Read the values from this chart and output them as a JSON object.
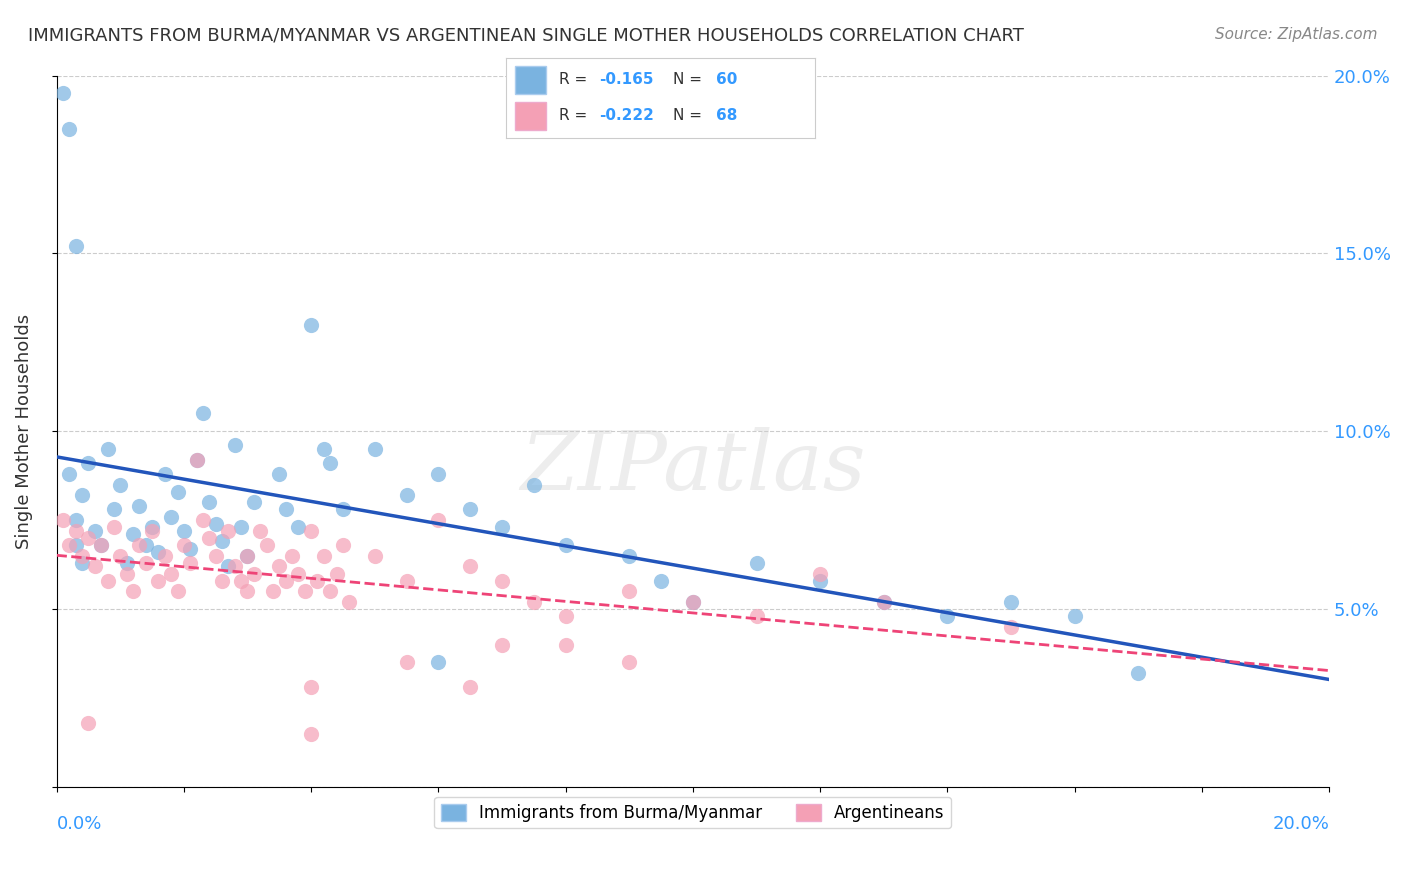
{
  "title": "IMMIGRANTS FROM BURMA/MYANMAR VS ARGENTINEAN SINGLE MOTHER HOUSEHOLDS CORRELATION CHART",
  "source": "Source: ZipAtlas.com",
  "ylabel": "Single Mother Households",
  "legend1_r": "-0.165",
  "legend1_n": "60",
  "legend2_r": "-0.222",
  "legend2_n": "68",
  "xlim": [
    0.0,
    0.2
  ],
  "ylim": [
    0.0,
    0.2
  ],
  "blue_color": "#7ab3e0",
  "pink_color": "#f4a0b5",
  "blue_line_color": "#2255bb",
  "pink_line_color": "#ee4477",
  "watermark": "ZIPatlas",
  "watermark_color": "#cccccc",
  "blue_scatter": [
    [
      0.002,
      0.088
    ],
    [
      0.003,
      0.075
    ],
    [
      0.004,
      0.082
    ],
    [
      0.005,
      0.091
    ],
    [
      0.006,
      0.072
    ],
    [
      0.007,
      0.068
    ],
    [
      0.008,
      0.095
    ],
    [
      0.009,
      0.078
    ],
    [
      0.01,
      0.085
    ],
    [
      0.011,
      0.063
    ],
    [
      0.012,
      0.071
    ],
    [
      0.013,
      0.079
    ],
    [
      0.014,
      0.068
    ],
    [
      0.015,
      0.073
    ],
    [
      0.016,
      0.066
    ],
    [
      0.017,
      0.088
    ],
    [
      0.018,
      0.076
    ],
    [
      0.019,
      0.083
    ],
    [
      0.02,
      0.072
    ],
    [
      0.021,
      0.067
    ],
    [
      0.022,
      0.092
    ],
    [
      0.023,
      0.105
    ],
    [
      0.024,
      0.08
    ],
    [
      0.025,
      0.074
    ],
    [
      0.026,
      0.069
    ],
    [
      0.027,
      0.062
    ],
    [
      0.028,
      0.096
    ],
    [
      0.029,
      0.073
    ],
    [
      0.03,
      0.065
    ],
    [
      0.031,
      0.08
    ],
    [
      0.035,
      0.088
    ],
    [
      0.036,
      0.078
    ],
    [
      0.038,
      0.073
    ],
    [
      0.04,
      0.13
    ],
    [
      0.042,
      0.095
    ],
    [
      0.043,
      0.091
    ],
    [
      0.045,
      0.078
    ],
    [
      0.05,
      0.095
    ],
    [
      0.055,
      0.082
    ],
    [
      0.06,
      0.088
    ],
    [
      0.065,
      0.078
    ],
    [
      0.07,
      0.073
    ],
    [
      0.075,
      0.085
    ],
    [
      0.08,
      0.068
    ],
    [
      0.09,
      0.065
    ],
    [
      0.095,
      0.058
    ],
    [
      0.1,
      0.052
    ],
    [
      0.11,
      0.063
    ],
    [
      0.12,
      0.058
    ],
    [
      0.13,
      0.052
    ],
    [
      0.14,
      0.048
    ],
    [
      0.15,
      0.052
    ],
    [
      0.001,
      0.195
    ],
    [
      0.002,
      0.185
    ],
    [
      0.003,
      0.152
    ],
    [
      0.06,
      0.035
    ],
    [
      0.16,
      0.048
    ],
    [
      0.17,
      0.032
    ],
    [
      0.003,
      0.068
    ],
    [
      0.004,
      0.063
    ]
  ],
  "pink_scatter": [
    [
      0.001,
      0.075
    ],
    [
      0.002,
      0.068
    ],
    [
      0.003,
      0.072
    ],
    [
      0.004,
      0.065
    ],
    [
      0.005,
      0.07
    ],
    [
      0.006,
      0.062
    ],
    [
      0.007,
      0.068
    ],
    [
      0.008,
      0.058
    ],
    [
      0.009,
      0.073
    ],
    [
      0.01,
      0.065
    ],
    [
      0.011,
      0.06
    ],
    [
      0.012,
      0.055
    ],
    [
      0.013,
      0.068
    ],
    [
      0.014,
      0.063
    ],
    [
      0.015,
      0.072
    ],
    [
      0.016,
      0.058
    ],
    [
      0.017,
      0.065
    ],
    [
      0.018,
      0.06
    ],
    [
      0.019,
      0.055
    ],
    [
      0.02,
      0.068
    ],
    [
      0.021,
      0.063
    ],
    [
      0.022,
      0.092
    ],
    [
      0.023,
      0.075
    ],
    [
      0.024,
      0.07
    ],
    [
      0.025,
      0.065
    ],
    [
      0.026,
      0.058
    ],
    [
      0.027,
      0.072
    ],
    [
      0.028,
      0.062
    ],
    [
      0.029,
      0.058
    ],
    [
      0.03,
      0.065
    ],
    [
      0.031,
      0.06
    ],
    [
      0.032,
      0.072
    ],
    [
      0.033,
      0.068
    ],
    [
      0.034,
      0.055
    ],
    [
      0.035,
      0.062
    ],
    [
      0.036,
      0.058
    ],
    [
      0.037,
      0.065
    ],
    [
      0.038,
      0.06
    ],
    [
      0.039,
      0.055
    ],
    [
      0.04,
      0.072
    ],
    [
      0.041,
      0.058
    ],
    [
      0.042,
      0.065
    ],
    [
      0.043,
      0.055
    ],
    [
      0.044,
      0.06
    ],
    [
      0.045,
      0.068
    ],
    [
      0.046,
      0.052
    ],
    [
      0.05,
      0.065
    ],
    [
      0.055,
      0.058
    ],
    [
      0.06,
      0.075
    ],
    [
      0.065,
      0.062
    ],
    [
      0.07,
      0.058
    ],
    [
      0.075,
      0.052
    ],
    [
      0.08,
      0.048
    ],
    [
      0.09,
      0.055
    ],
    [
      0.1,
      0.052
    ],
    [
      0.11,
      0.048
    ],
    [
      0.13,
      0.052
    ],
    [
      0.15,
      0.045
    ],
    [
      0.005,
      0.018
    ],
    [
      0.04,
      0.028
    ],
    [
      0.055,
      0.035
    ],
    [
      0.065,
      0.028
    ],
    [
      0.12,
      0.06
    ],
    [
      0.04,
      0.015
    ],
    [
      0.07,
      0.04
    ],
    [
      0.09,
      0.035
    ],
    [
      0.08,
      0.04
    ],
    [
      0.03,
      0.055
    ]
  ]
}
